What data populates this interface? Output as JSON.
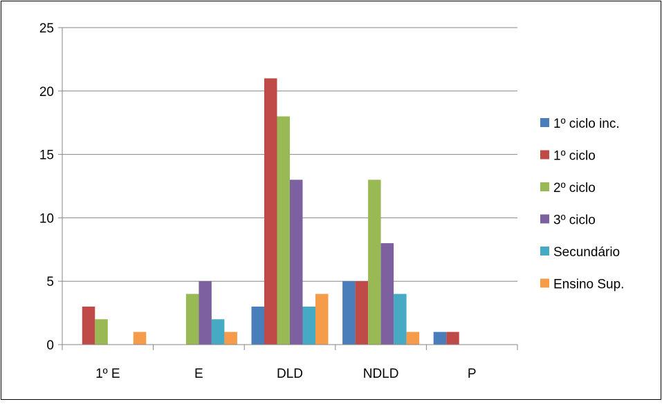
{
  "chart_data": {
    "type": "bar",
    "categories": [
      "1º E",
      "E",
      "DLD",
      "NDLD",
      "P"
    ],
    "series": [
      {
        "name": "1º ciclo inc.",
        "color": "#4A7EBB",
        "values": [
          0,
          0,
          3,
          5,
          1
        ]
      },
      {
        "name": "1º ciclo",
        "color": "#BE4B48",
        "values": [
          3,
          0,
          21,
          5,
          1
        ]
      },
      {
        "name": "2º ciclo",
        "color": "#98B954",
        "values": [
          2,
          4,
          18,
          13,
          0
        ]
      },
      {
        "name": "3º ciclo",
        "color": "#7D60A0",
        "values": [
          0,
          5,
          13,
          8,
          0
        ]
      },
      {
        "name": "Secundário",
        "color": "#46AAC5",
        "values": [
          0,
          2,
          3,
          4,
          0
        ]
      },
      {
        "name": "Ensino Sup.",
        "color": "#F59B4A",
        "values": [
          1,
          1,
          4,
          1,
          0
        ]
      }
    ],
    "ylim": [
      0,
      25
    ],
    "yticks": [
      0,
      5,
      10,
      15,
      20,
      25
    ],
    "grid": true,
    "legend": "right",
    "title": "",
    "xlabel": "",
    "ylabel": ""
  }
}
